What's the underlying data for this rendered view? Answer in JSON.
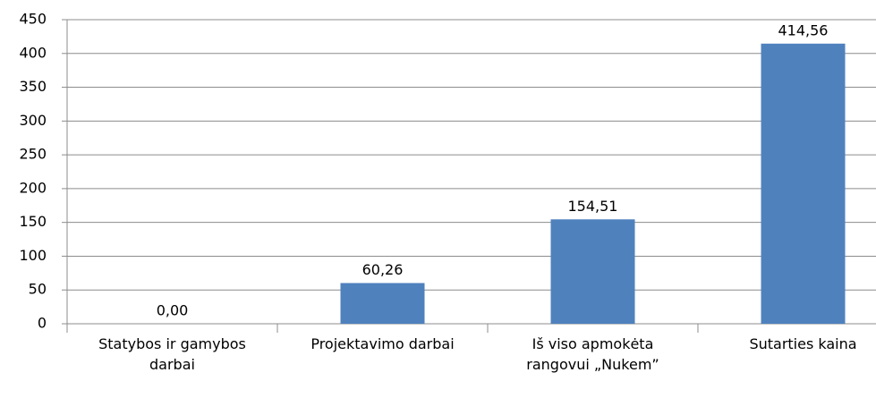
{
  "chart_data": {
    "type": "bar",
    "categories": [
      "Statybos ir gamybos darbai",
      "Projektavimo darbai",
      "Iš viso apmokėta rangovui „Nukem”",
      "Sutarties kaina"
    ],
    "values": [
      0,
      60.26,
      154.51,
      414.56
    ],
    "value_labels": [
      "0,00",
      "60,26",
      "154,51",
      "414,56"
    ],
    "color": "#4f81bd",
    "ylim": [
      0,
      450
    ],
    "yticks": [
      0,
      50,
      100,
      150,
      200,
      250,
      300,
      350,
      400,
      450
    ],
    "grid": true
  }
}
